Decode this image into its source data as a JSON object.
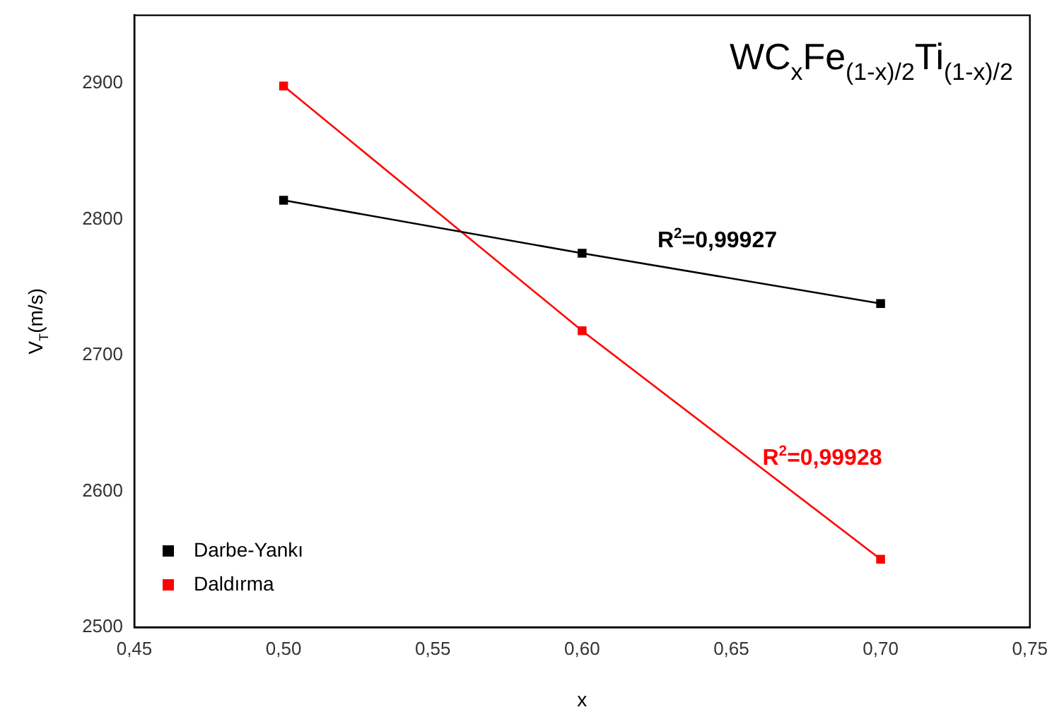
{
  "chart_data": {
    "type": "line",
    "title": "WC$_{x}$Fe$_{(1-x)/2}$Ti$_{(1-x)/2}$",
    "xlabel": "x",
    "ylabel": "V$_{T}$(m/s)",
    "x": [
      0.5,
      0.6,
      0.7
    ],
    "series": [
      {
        "name": "Darbe-Yankı",
        "color": "#000000",
        "values": [
          2814,
          2775,
          2738
        ]
      },
      {
        "name": "Daldırma",
        "color": "#ff0000",
        "values": [
          2898,
          2718,
          2550
        ]
      }
    ],
    "xlim": [
      0.45,
      0.75
    ],
    "xticks": [
      {
        "value": 0.45,
        "label": "0,45"
      },
      {
        "value": 0.5,
        "label": "0,50"
      },
      {
        "value": 0.55,
        "label": "0,55"
      },
      {
        "value": 0.6,
        "label": "0,60"
      },
      {
        "value": 0.65,
        "label": "0,65"
      },
      {
        "value": 0.7,
        "label": "0,70"
      },
      {
        "value": 0.75,
        "label": "0,75"
      }
    ],
    "ylim": [
      2500,
      2950
    ],
    "yticks": [
      2500,
      2600,
      2700,
      2800,
      2900
    ],
    "annotations": [
      "R$^{2}$=0,99927",
      "R$^{2}$=0,99928"
    ],
    "marker": "square",
    "line_style": "solid",
    "grid": false,
    "legend": "bottom left"
  }
}
